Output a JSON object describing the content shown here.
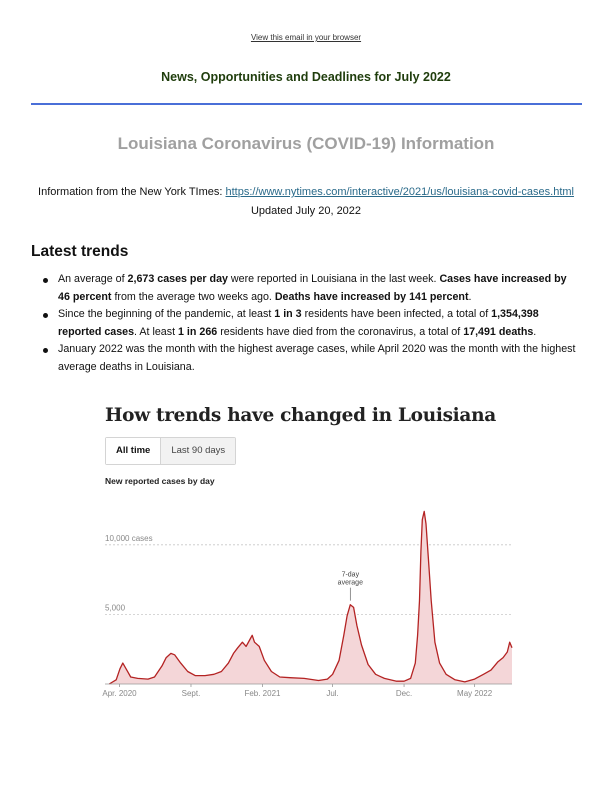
{
  "header": {
    "view_link": "View this email in your browser",
    "newsletter_title": "News, Opportunities and Deadlines for July 2022"
  },
  "section": {
    "title": "Louisiana Coronavirus (COVID-19) Information",
    "source_prefix": "Information from the New York TImes: ",
    "source_url": "https://www.nytimes.com/interactive/2021/us/louisiana-covid-cases.html",
    "updated": "Updated July 20, 2022"
  },
  "trends": {
    "heading": "Latest trends",
    "items": [
      [
        {
          "t": "An average of "
        },
        {
          "t": "2,673 cases per day",
          "b": true
        },
        {
          "t": " were reported in Louisiana in the last week. "
        },
        {
          "t": "Cases have increased by 46 percent",
          "b": true
        },
        {
          "t": " from the average two weeks ago. "
        },
        {
          "t": "Deaths have increased by 141 percent",
          "b": true
        },
        {
          "t": "."
        }
      ],
      [
        {
          "t": "Since the beginning of the pandemic, at least "
        },
        {
          "t": "1 in 3",
          "b": true
        },
        {
          "t": " residents have been infected, a total of "
        },
        {
          "t": "1,354,398 reported cases",
          "b": true
        },
        {
          "t": ". At least "
        },
        {
          "t": "1 in 266",
          "b": true
        },
        {
          "t": " residents have died from the coronavirus, a total of "
        },
        {
          "t": "17,491 deaths",
          "b": true
        },
        {
          "t": "."
        }
      ],
      [
        {
          "t": "January 2022 was the month with the highest average cases, while April 2020 was the month with the highest average deaths in Louisiana."
        }
      ]
    ]
  },
  "chart_block": {
    "title": "How trends have changed in Louisiana",
    "tabs": [
      "All time",
      "Last 90 days"
    ],
    "active_tab": "All time",
    "subtitle": "New reported cases by day"
  },
  "colors": {
    "line": "#b42323",
    "fill": "#f4d6d8",
    "grid": "#c8c8c8",
    "link": "#2a6a8a",
    "divider": "#4a6fd8"
  },
  "chart_data": {
    "type": "area",
    "series": [
      {
        "x": [
          "2020-03-10",
          "2020-03-25",
          "2020-04-02",
          "2020-04-08",
          "2020-04-15",
          "2020-04-25",
          "2020-05-10",
          "2020-06-01",
          "2020-06-15",
          "2020-07-01",
          "2020-07-10",
          "2020-07-20",
          "2020-07-28",
          "2020-08-10",
          "2020-08-25",
          "2020-09-10",
          "2020-10-01",
          "2020-10-20",
          "2020-11-05",
          "2020-11-20",
          "2020-12-01",
          "2020-12-10",
          "2020-12-20",
          "2020-12-28",
          "2021-01-05",
          "2021-01-10",
          "2021-01-15",
          "2021-01-25",
          "2021-02-05",
          "2021-02-20",
          "2021-03-10",
          "2021-04-01",
          "2021-05-01",
          "2021-06-01",
          "2021-06-20",
          "2021-07-01",
          "2021-07-15",
          "2021-07-25",
          "2021-08-01",
          "2021-08-08",
          "2021-08-15",
          "2021-08-22",
          "2021-09-01",
          "2021-09-15",
          "2021-10-01",
          "2021-10-20",
          "2021-11-15",
          "2021-12-01",
          "2021-12-15",
          "2021-12-25",
          "2021-12-30",
          "2022-01-03",
          "2022-01-06",
          "2022-01-09",
          "2022-01-13",
          "2022-01-17",
          "2022-01-22",
          "2022-01-28",
          "2022-02-05",
          "2022-02-15",
          "2022-03-01",
          "2022-03-20",
          "2022-04-10",
          "2022-05-01",
          "2022-05-20",
          "2022-06-05",
          "2022-06-20",
          "2022-07-01",
          "2022-07-10",
          "2022-07-15",
          "2022-07-20"
        ],
        "values": [
          0,
          300,
          1100,
          1500,
          1100,
          500,
          400,
          350,
          500,
          1300,
          1900,
          2200,
          2100,
          1500,
          900,
          600,
          600,
          700,
          900,
          1500,
          2200,
          2600,
          3000,
          2700,
          3200,
          3500,
          3000,
          2700,
          1700,
          900,
          500,
          450,
          400,
          250,
          350,
          700,
          1700,
          3500,
          4900,
          5700,
          5500,
          4200,
          2800,
          1400,
          700,
          400,
          200,
          200,
          400,
          1500,
          3500,
          6000,
          9500,
          11800,
          12400,
          11500,
          9000,
          6000,
          3000,
          1500,
          700,
          300,
          150,
          350,
          700,
          1000,
          1600,
          1900,
          2300,
          3000,
          2600
        ]
      }
    ],
    "xticks": [
      "Apr. 2020",
      "Sept.",
      "Feb. 2021",
      "Jul.",
      "Dec.",
      "May 2022"
    ],
    "xtick_dates": [
      "2020-04-01",
      "2020-09-01",
      "2021-02-01",
      "2021-07-01",
      "2021-12-01",
      "2022-05-01"
    ],
    "ygrid_values": [
      5000,
      10000
    ],
    "ygrid_labels": [
      "5,000",
      "10,000 cases"
    ],
    "ylim": [
      0,
      12500
    ],
    "xlim": [
      "2020-03-01",
      "2022-07-20"
    ],
    "annotation": {
      "text": [
        "7-day",
        "average"
      ],
      "date": "2021-08-08",
      "value": 5700
    }
  }
}
